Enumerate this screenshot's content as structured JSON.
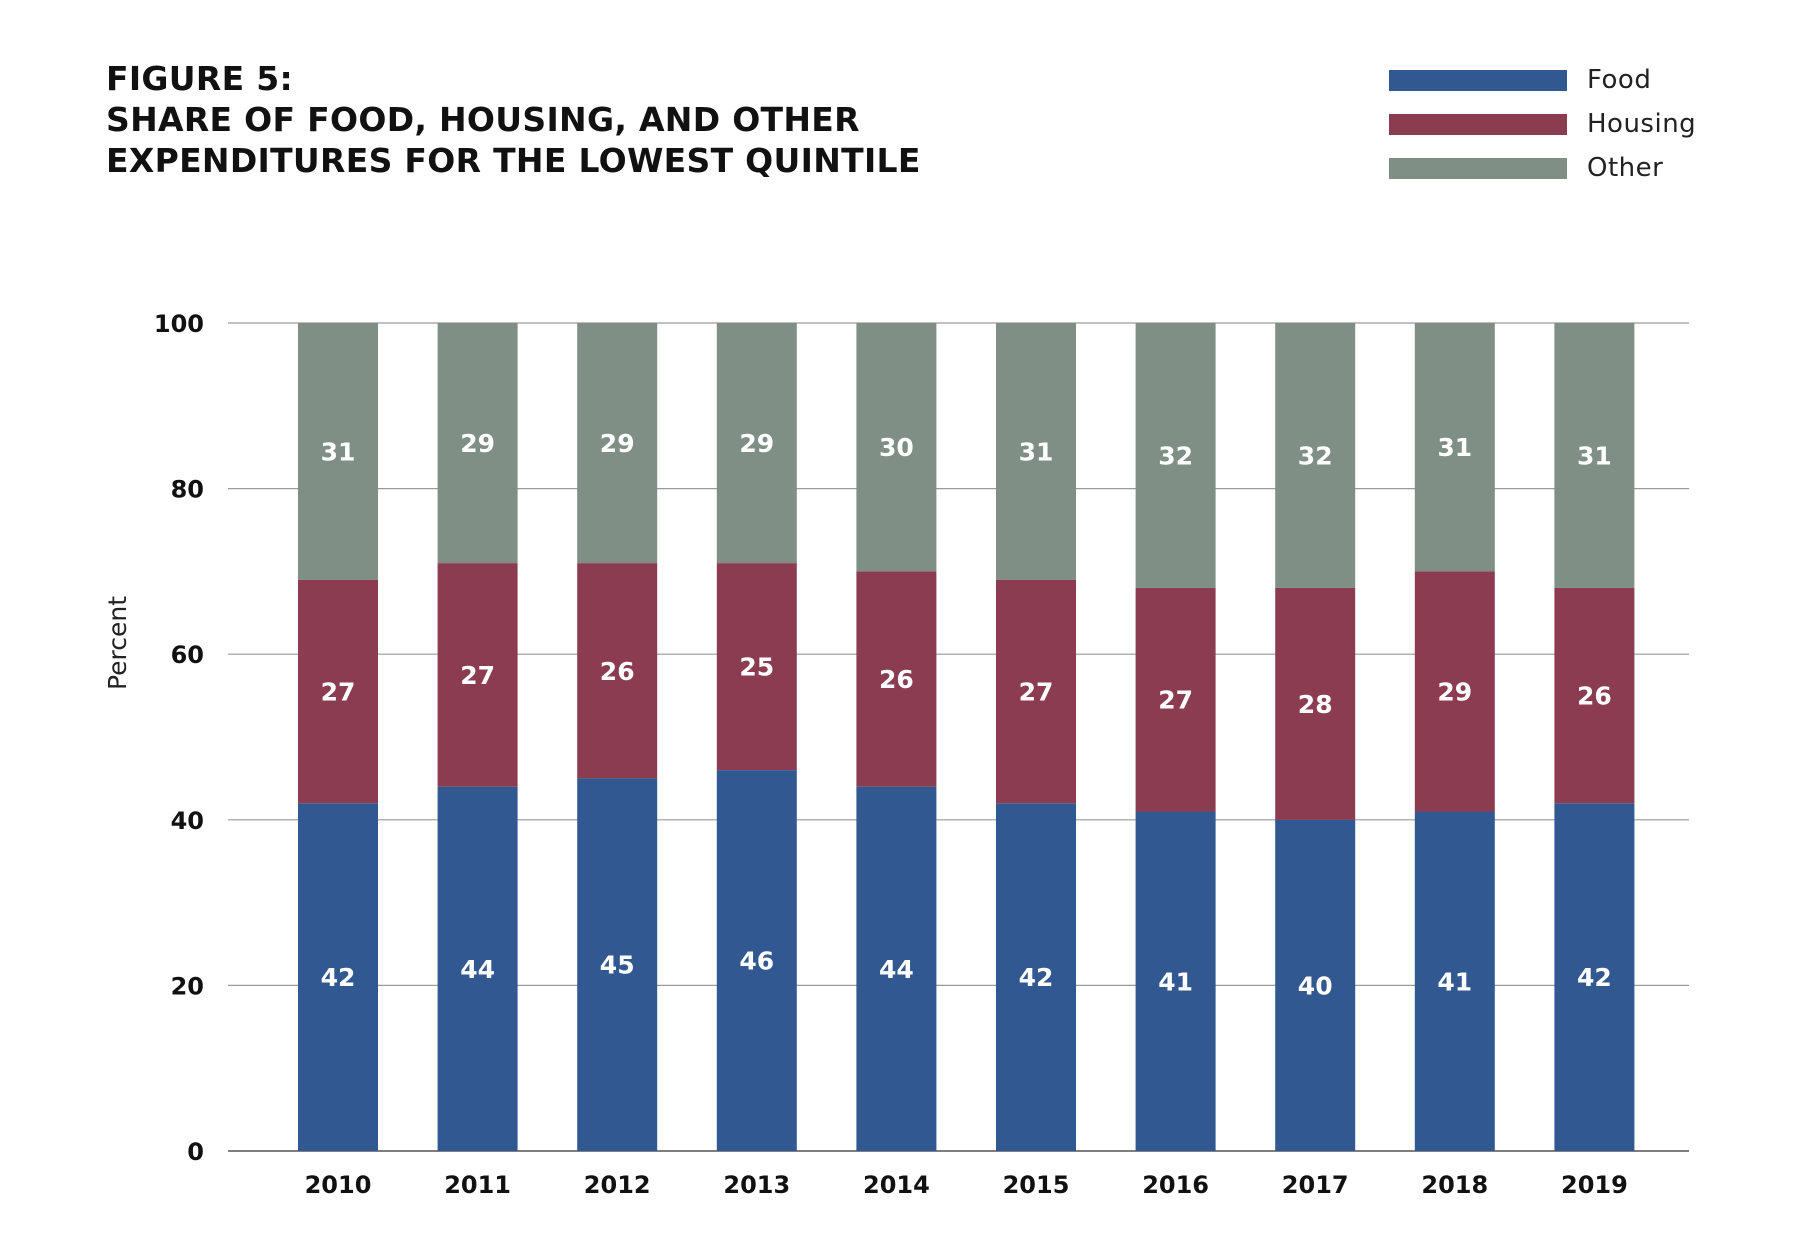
{
  "figure": {
    "title_lines": [
      "FIGURE 5:",
      "SHARE OF FOOD, HOUSING, AND OTHER",
      "EXPENDITURES FOR THE LOWEST QUINTILE"
    ]
  },
  "chart_data": {
    "type": "bar",
    "stacked": true,
    "title": "FIGURE 5: SHARE OF FOOD, HOUSING, AND OTHER EXPENDITURES FOR THE LOWEST QUINTILE",
    "xlabel": "",
    "ylabel": "Percent",
    "ylim": [
      0,
      100
    ],
    "yticks": [
      0,
      20,
      40,
      60,
      80,
      100
    ],
    "grid": true,
    "legend_position": "top-right",
    "categories": [
      "2010",
      "2011",
      "2012",
      "2013",
      "2014",
      "2015",
      "2016",
      "2017",
      "2018",
      "2019"
    ],
    "series": [
      {
        "name": "Food",
        "color": "#315891",
        "values": [
          42,
          44,
          45,
          46,
          44,
          42,
          41,
          40,
          41,
          42
        ]
      },
      {
        "name": "Housing",
        "color": "#8b3c51",
        "values": [
          27,
          27,
          26,
          25,
          26,
          27,
          27,
          28,
          29,
          26
        ]
      },
      {
        "name": "Other",
        "color": "#7f8f86",
        "values": [
          31,
          29,
          29,
          29,
          30,
          31,
          32,
          32,
          31,
          31
        ]
      }
    ]
  }
}
